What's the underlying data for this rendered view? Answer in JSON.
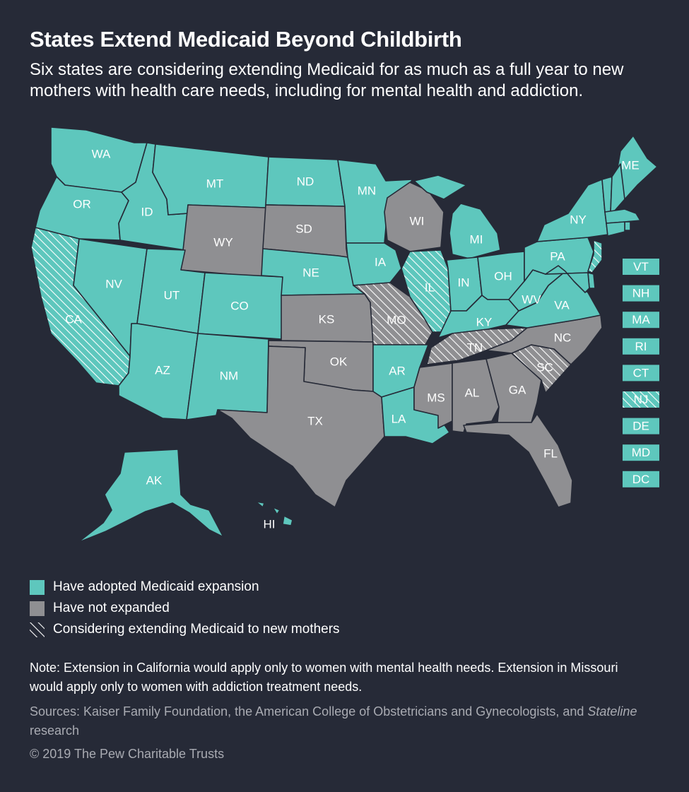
{
  "title": "States Extend Medicaid Beyond Childbirth",
  "subtitle": "Six states are considering extending Medicaid for as much as a full year to new mothers with health care needs, including for mental health and addiction.",
  "colors": {
    "background": "#262a37",
    "expanded": "#5ec7bd",
    "not_expanded": "#8f8f92",
    "hatch_line": "#ffffff"
  },
  "states": [
    {
      "code": "WA",
      "status": "expanded"
    },
    {
      "code": "OR",
      "status": "expanded"
    },
    {
      "code": "CA",
      "status": "expanded",
      "considering": true
    },
    {
      "code": "ID",
      "status": "expanded"
    },
    {
      "code": "NV",
      "status": "expanded"
    },
    {
      "code": "MT",
      "status": "expanded"
    },
    {
      "code": "WY",
      "status": "not_expanded"
    },
    {
      "code": "UT",
      "status": "expanded"
    },
    {
      "code": "AZ",
      "status": "expanded"
    },
    {
      "code": "CO",
      "status": "expanded"
    },
    {
      "code": "NM",
      "status": "expanded"
    },
    {
      "code": "ND",
      "status": "expanded"
    },
    {
      "code": "SD",
      "status": "not_expanded"
    },
    {
      "code": "NE",
      "status": "expanded"
    },
    {
      "code": "KS",
      "status": "not_expanded"
    },
    {
      "code": "OK",
      "status": "not_expanded"
    },
    {
      "code": "TX",
      "status": "not_expanded"
    },
    {
      "code": "MN",
      "status": "expanded"
    },
    {
      "code": "IA",
      "status": "expanded"
    },
    {
      "code": "MO",
      "status": "not_expanded",
      "considering": true
    },
    {
      "code": "AR",
      "status": "expanded"
    },
    {
      "code": "LA",
      "status": "expanded"
    },
    {
      "code": "WI",
      "status": "not_expanded"
    },
    {
      "code": "IL",
      "status": "expanded",
      "considering": true
    },
    {
      "code": "MI",
      "status": "expanded"
    },
    {
      "code": "IN",
      "status": "expanded"
    },
    {
      "code": "OH",
      "status": "expanded"
    },
    {
      "code": "KY",
      "status": "expanded"
    },
    {
      "code": "TN",
      "status": "not_expanded",
      "considering": true
    },
    {
      "code": "MS",
      "status": "not_expanded"
    },
    {
      "code": "AL",
      "status": "not_expanded"
    },
    {
      "code": "GA",
      "status": "not_expanded"
    },
    {
      "code": "FL",
      "status": "not_expanded"
    },
    {
      "code": "SC",
      "status": "not_expanded",
      "considering": true
    },
    {
      "code": "NC",
      "status": "not_expanded"
    },
    {
      "code": "VA",
      "status": "expanded"
    },
    {
      "code": "WV",
      "status": "expanded"
    },
    {
      "code": "PA",
      "status": "expanded"
    },
    {
      "code": "NY",
      "status": "expanded"
    },
    {
      "code": "ME",
      "status": "expanded"
    },
    {
      "code": "AK",
      "status": "expanded"
    },
    {
      "code": "HI",
      "status": "expanded"
    }
  ],
  "small_states": [
    {
      "code": "VT",
      "status": "expanded"
    },
    {
      "code": "NH",
      "status": "expanded"
    },
    {
      "code": "MA",
      "status": "expanded"
    },
    {
      "code": "RI",
      "status": "expanded"
    },
    {
      "code": "CT",
      "status": "expanded"
    },
    {
      "code": "NJ",
      "status": "expanded",
      "considering": true
    },
    {
      "code": "DE",
      "status": "expanded"
    },
    {
      "code": "MD",
      "status": "expanded"
    },
    {
      "code": "DC",
      "status": "expanded"
    }
  ],
  "legend": [
    {
      "label": "Have adopted Medicaid expansion",
      "kind": "expanded"
    },
    {
      "label": "Have not expanded",
      "kind": "not_expanded"
    },
    {
      "label": "Considering extending Medicaid to new mothers",
      "kind": "considering"
    }
  ],
  "note": "Note: Extension in California would apply only to women with mental health needs. Extension in Missouri would apply only to women with addiction treatment needs.",
  "sources_prefix": "Sources: Kaiser Family Foundation, the American College of Obstetricians and Gynecologists, and ",
  "sources_italic": "Stateline",
  "sources_suffix": " research",
  "copyright": "© 2019 The Pew Charitable Trusts"
}
